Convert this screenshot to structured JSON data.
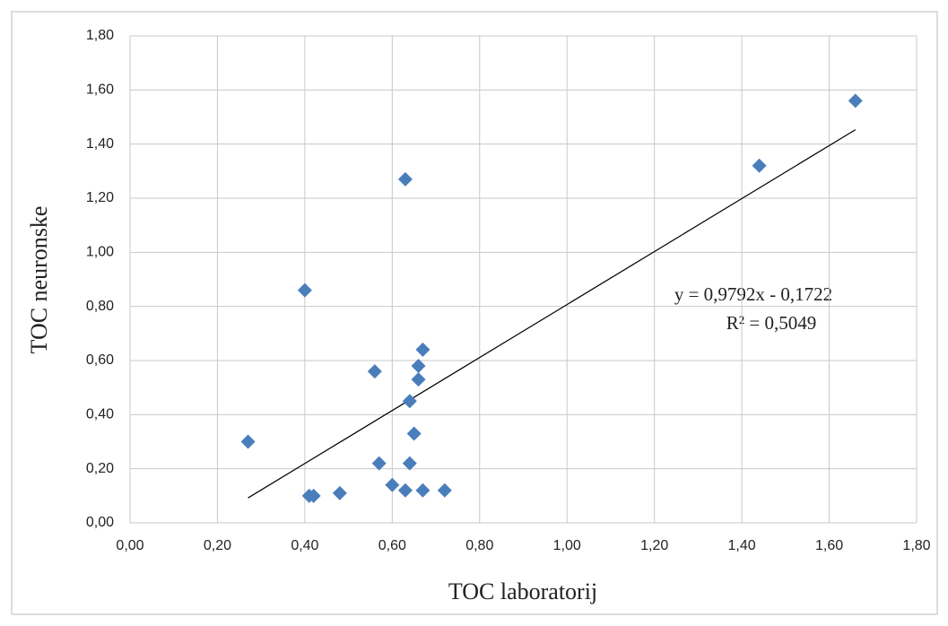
{
  "chart_data": {
    "type": "scatter",
    "xlabel": "TOC laboratorij",
    "ylabel": "TOC neuronske",
    "x": [
      0.27,
      0.4,
      0.41,
      0.42,
      0.48,
      0.56,
      0.57,
      0.6,
      0.63,
      0.63,
      0.64,
      0.64,
      0.65,
      0.66,
      0.66,
      0.67,
      0.67,
      0.72,
      1.44,
      1.66
    ],
    "values": [
      0.3,
      0.86,
      0.1,
      0.1,
      0.11,
      0.56,
      0.22,
      0.14,
      1.27,
      0.12,
      0.45,
      0.22,
      0.33,
      0.58,
      0.53,
      0.64,
      0.12,
      0.12,
      1.32,
      1.56
    ],
    "color": "#4a7ebb",
    "xlim": [
      0,
      1.8
    ],
    "ylim": [
      0,
      1.8
    ],
    "xticks": [
      {
        "value": 0,
        "label": "0,00"
      },
      {
        "value": 0.2,
        "label": "0,20"
      },
      {
        "value": 0.4,
        "label": "0,40"
      },
      {
        "value": 0.6,
        "label": "0,60"
      },
      {
        "value": 0.8,
        "label": "0,80"
      },
      {
        "value": 1,
        "label": "1,00"
      },
      {
        "value": 1.2,
        "label": "1,20"
      },
      {
        "value": 1.4,
        "label": "1,40"
      },
      {
        "value": 1.6,
        "label": "1,60"
      },
      {
        "value": 1.8,
        "label": "1,80"
      }
    ],
    "yticks": [
      {
        "value": 0,
        "label": "0,00"
      },
      {
        "value": 0.2,
        "label": "0,20"
      },
      {
        "value": 0.4,
        "label": "0,40"
      },
      {
        "value": 0.6,
        "label": "0,60"
      },
      {
        "value": 0.8,
        "label": "0,80"
      },
      {
        "value": 1,
        "label": "1,00"
      },
      {
        "value": 1.2,
        "label": "1,20"
      },
      {
        "value": 1.4,
        "label": "1,40"
      },
      {
        "value": 1.6,
        "label": "1,60"
      },
      {
        "value": 1.8,
        "label": "1,80"
      }
    ],
    "grid": true,
    "trendline": {
      "slope": 0.9792,
      "intercept": -0.1722,
      "label": "y = 0,9792x - 0,1722"
    },
    "r2": {
      "value": 0.5049,
      "label": "R² = 0,5049"
    }
  }
}
